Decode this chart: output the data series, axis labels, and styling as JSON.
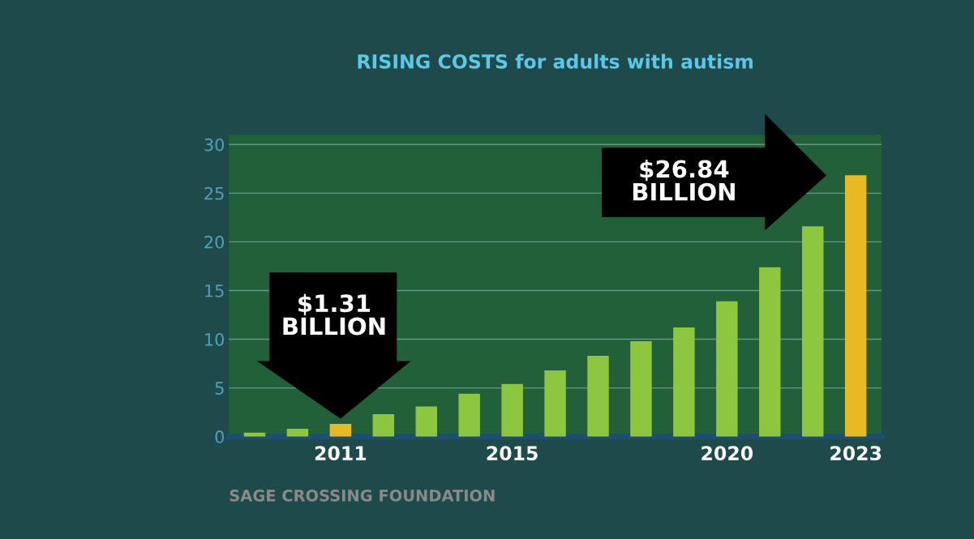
{
  "chart_data": {
    "type": "bar",
    "title": "RISING COSTS for adults with autism",
    "categories": [
      null,
      null,
      "2011",
      null,
      null,
      null,
      "2015",
      null,
      null,
      null,
      null,
      "2020",
      null,
      null,
      "2023"
    ],
    "values": [
      0.4,
      0.8,
      1.31,
      2.3,
      3.1,
      4.4,
      5.4,
      6.8,
      8.3,
      9.8,
      11.2,
      13.9,
      17.4,
      21.6,
      26.84
    ],
    "colors": [
      "#8dc63f",
      "#8dc63f",
      "#e8b923",
      "#8dc63f",
      "#8dc63f",
      "#8dc63f",
      "#8dc63f",
      "#8dc63f",
      "#8dc63f",
      "#8dc63f",
      "#8dc63f",
      "#8dc63f",
      "#8dc63f",
      "#8dc63f",
      "#e8b923"
    ],
    "ylim": [
      0,
      31
    ],
    "yticks": [
      0,
      5,
      10,
      15,
      20,
      25,
      30
    ],
    "grid": "y",
    "annotations": [
      "$1.31\nBILLION",
      "$26.84\nBILLION",
      "SAGE CROSSING FOUNDATION"
    ]
  }
}
